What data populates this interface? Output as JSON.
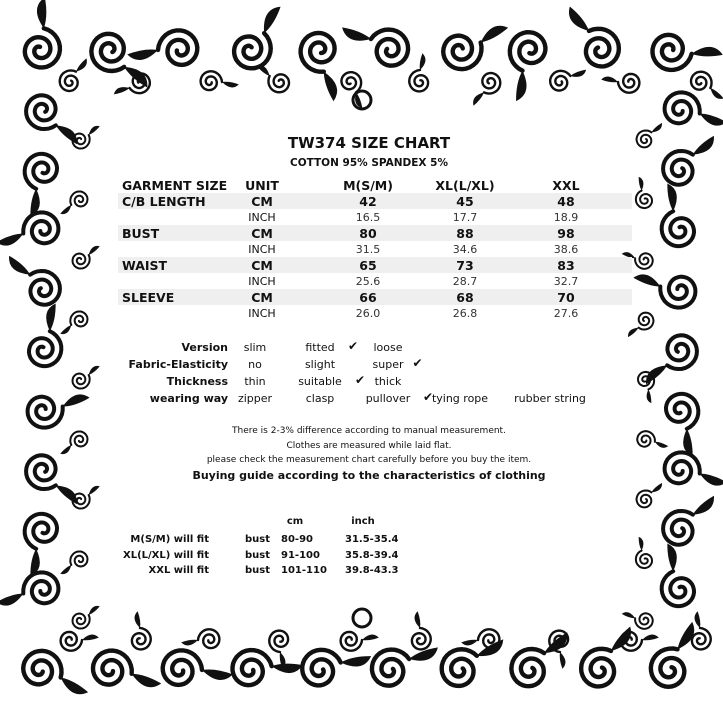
{
  "title": "TW374 SIZE CHART",
  "material": "COTTON 95% SPANDEX 5%",
  "table": {
    "headers": [
      "GARMENT SIZE",
      "UNIT",
      "M(S/M)",
      "XL(L/XL)",
      "XXL"
    ],
    "rows": [
      {
        "label": "C/B LENGTH",
        "cm": [
          "42",
          "45",
          "48"
        ],
        "inch": [
          "16.5",
          "17.7",
          "18.9"
        ]
      },
      {
        "label": "BUST",
        "cm": [
          "80",
          "88",
          "98"
        ],
        "inch": [
          "31.5",
          "34.6",
          "38.6"
        ]
      },
      {
        "label": "WAIST",
        "cm": [
          "65",
          "73",
          "83"
        ],
        "inch": [
          "25.6",
          "28.7",
          "32.7"
        ]
      },
      {
        "label": "SLEEVE",
        "cm": [
          "66",
          "68",
          "70"
        ],
        "inch": [
          "26.0",
          "26.8",
          "27.6"
        ]
      }
    ],
    "unit_cm": "CM",
    "unit_inch": "INCH"
  },
  "attributes": [
    {
      "label": "Version",
      "options": [
        "slim",
        "fitted",
        "loose"
      ],
      "checked": "fitted"
    },
    {
      "label": "Fabric-Elasticity",
      "options": [
        "no",
        "slight",
        "super"
      ],
      "checked": "super"
    },
    {
      "label": "Thickness",
      "options": [
        "thin",
        "suitable",
        "thick"
      ],
      "checked": "suitable"
    },
    {
      "label": "wearing way",
      "options": [
        "zipper",
        "clasp",
        "pullover",
        "tying rope",
        "rubber string"
      ],
      "checked": "pullover"
    }
  ],
  "check_mark": "✔",
  "notes": [
    "There is 2-3% difference according to manual measurement.",
    "Clothes are measured while laid flat.",
    "please check the measurement chart carefully before you buy the item."
  ],
  "guide": {
    "title": "Buying guide according to the characteristics of clothing",
    "col_cm": "cm",
    "col_inch": "inch",
    "rows": [
      {
        "label": "M(S/M) will fit",
        "part": "bust",
        "cm": "80-90",
        "inch": "31.5-35.4"
      },
      {
        "label": "XL(L/XL) will fit",
        "part": "bust",
        "cm": "91-100",
        "inch": "35.8-39.4"
      },
      {
        "label": "XXL will fit",
        "part": "bust",
        "cm": "101-110",
        "inch": "39.8-43.3"
      }
    ]
  }
}
